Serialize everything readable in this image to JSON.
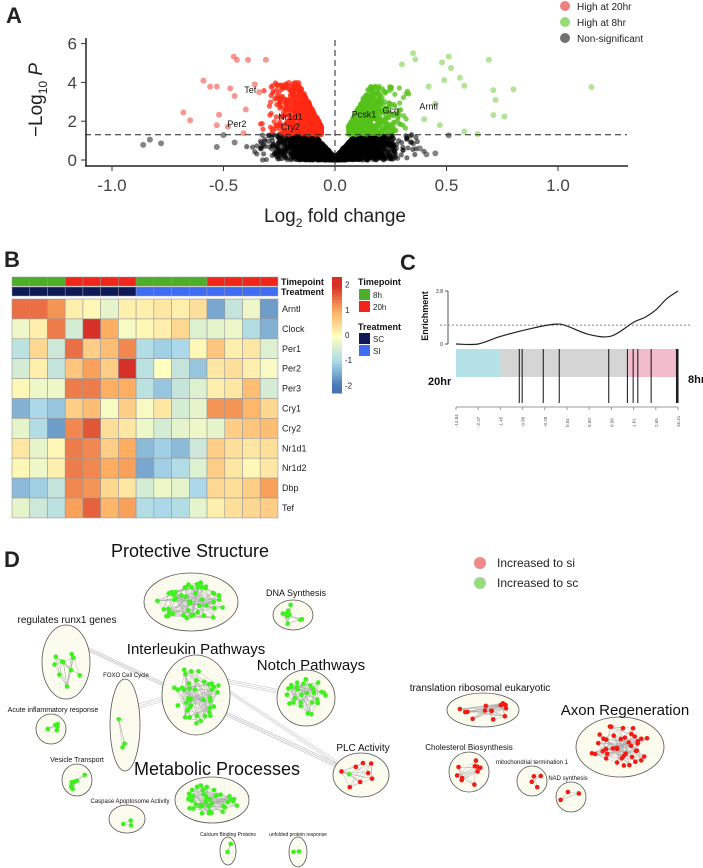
{
  "panels": {
    "a": "A",
    "b": "B",
    "c": "C",
    "d": "D"
  },
  "chart_data": [
    {
      "type": "scatter",
      "panel": "A",
      "title": "",
      "xlabel_main": "Log",
      "xlabel_sub": "2",
      "xlabel_rest": " fold change",
      "ylabel_main": "−Log",
      "ylabel_sub": "10",
      "ylabel_rest": " P",
      "xlim": [
        -1.15,
        1.3
      ],
      "ylim": [
        0,
        6.2
      ],
      "xticks": [
        "-1.0",
        "-0.5",
        "0.0",
        "0.5",
        "1.0"
      ],
      "xtick_values": [
        -1.0,
        -0.5,
        0.0,
        0.5,
        1.0
      ],
      "yticks": [
        "0",
        "2",
        "4",
        "6"
      ],
      "ytick_values": [
        0,
        2,
        4,
        6
      ],
      "significance_threshold": 1.3,
      "fc_threshold": 0.0,
      "legend": [
        {
          "label": "High at 20hr",
          "color": "#F08080"
        },
        {
          "label": "High at 8hr",
          "color": "#98DC78"
        },
        {
          "label": "Non-significant",
          "color": "#707070"
        }
      ],
      "legend_position": "top-right",
      "colors": {
        "high20": "#FF2A14",
        "high8": "#55C21A",
        "ns": "#000000"
      },
      "outliers": {
        "high20": [
          [
            -0.454,
            5.33
          ],
          [
            -0.44,
            5.16
          ],
          [
            -0.39,
            5.16
          ],
          [
            -0.31,
            5.17
          ],
          [
            -0.59,
            4.09
          ],
          [
            -0.56,
            3.78
          ],
          [
            -0.53,
            3.79
          ],
          [
            -0.47,
            3.69
          ],
          [
            -0.68,
            2.45
          ],
          [
            -0.65,
            2.05
          ],
          [
            -0.52,
            2.33
          ],
          [
            -0.53,
            1.79
          ],
          [
            -0.48,
            1.72
          ],
          [
            -0.41,
            1.38
          ],
          [
            -0.45,
            3.3
          ],
          [
            -0.4,
            2.6
          ],
          [
            -0.36,
            3.9
          ],
          [
            -0.34,
            3.5
          ]
        ],
        "high8": [
          [
            0.69,
            5.17
          ],
          [
            1.15,
            3.76
          ],
          [
            0.71,
            3.6
          ],
          [
            0.8,
            3.64
          ],
          [
            0.72,
            3.1
          ],
          [
            0.71,
            2.31
          ],
          [
            0.76,
            2.24
          ],
          [
            0.51,
            5.33
          ],
          [
            0.48,
            5.03
          ],
          [
            0.52,
            4.74
          ],
          [
            0.56,
            4.24
          ],
          [
            0.49,
            4.12
          ],
          [
            0.58,
            3.83
          ],
          [
            0.58,
            1.47
          ],
          [
            0.64,
            1.34
          ],
          [
            0.35,
            5.5
          ],
          [
            0.36,
            5.19
          ],
          [
            0.3,
            4.93
          ],
          [
            0.42,
            3.79
          ],
          [
            0.45,
            2.9
          ],
          [
            0.4,
            2.1
          ],
          [
            0.47,
            1.8
          ]
        ],
        "ns": [
          [
            -0.86,
            0.78
          ],
          [
            -0.83,
            1.05
          ],
          [
            -0.78,
            0.86
          ],
          [
            -0.5,
            1.28
          ],
          [
            -0.53,
            0.67
          ],
          [
            0.41,
            0.29
          ],
          [
            0.45,
            0.34
          ],
          [
            0.51,
            1.27
          ],
          [
            -0.45,
            0.9
          ],
          [
            0.38,
            0.6
          ]
        ]
      },
      "dense_cloud": {
        "ns_count": 2600,
        "high20_count": 700,
        "high8_count": 650
      },
      "gene_labels": [
        {
          "gene": "Tef",
          "x": -0.38,
          "y": 3.45
        },
        {
          "gene": "Nr1d1",
          "x": -0.2,
          "y": 2.05
        },
        {
          "gene": "Cry2",
          "x": -0.2,
          "y": 1.55
        },
        {
          "gene": "Per2",
          "x": -0.44,
          "y": 1.7
        },
        {
          "gene": "Pcsk1",
          "x": 0.13,
          "y": 2.2
        },
        {
          "gene": "Gcg",
          "x": 0.25,
          "y": 2.4
        },
        {
          "gene": "Arntl",
          "x": 0.42,
          "y": 2.6
        }
      ]
    },
    {
      "type": "heatmap",
      "panel": "B",
      "rows": [
        "Arntl",
        "Clock",
        "Per1",
        "Per2",
        "Per3",
        "Cry1",
        "Cry2",
        "Nr1d1",
        "Nr1d2",
        "Dbp",
        "Tef"
      ],
      "timepoint": [
        "8h",
        "8h",
        "8h",
        "20h",
        "20h",
        "20h",
        "20h",
        "8h",
        "8h",
        "8h",
        "8h",
        "20h",
        "20h",
        "20h",
        "20h"
      ],
      "treatment": [
        "SC",
        "SC",
        "SC",
        "SC",
        "SC",
        "SC",
        "SC",
        "SI",
        "SI",
        "SI",
        "SI",
        "SI",
        "SI",
        "SI",
        "SI"
      ],
      "values": [
        [
          1.5,
          1.5,
          1.2,
          0.2,
          0.1,
          -0.3,
          0.2,
          0.2,
          0.3,
          0.2,
          0.4,
          -1.5,
          -0.7,
          -0.2,
          -1.6
        ],
        [
          -0.2,
          0.2,
          1.4,
          -0.5,
          2.2,
          1.0,
          -0.1,
          0.1,
          0.2,
          0.5,
          -0.4,
          -0.3,
          -0.2,
          -0.9,
          -1.4
        ],
        [
          -0.8,
          0.5,
          -0.6,
          1.5,
          0.6,
          0.8,
          1.3,
          -0.9,
          -1.1,
          -1.0,
          0.1,
          0.7,
          0.2,
          0.3,
          -0.4
        ],
        [
          -0.5,
          0.2,
          -0.7,
          0.7,
          1.1,
          0.6,
          2.3,
          -0.8,
          0.0,
          -0.7,
          -1.2,
          0.3,
          0.4,
          0.2,
          -0.1
        ],
        [
          0.1,
          -0.2,
          -0.2,
          1.4,
          1.4,
          1.0,
          1.0,
          -0.8,
          -1.2,
          -0.7,
          -0.4,
          0.2,
          0.3,
          0.8,
          -0.5
        ],
        [
          -1.4,
          -1.0,
          -1.2,
          0.6,
          0.8,
          -0.1,
          0.6,
          -0.1,
          0.3,
          -0.5,
          -0.3,
          1.2,
          1.2,
          0.9,
          0.5
        ],
        [
          -0.3,
          -0.9,
          -1.6,
          1.3,
          1.7,
          0.4,
          0.3,
          -0.2,
          -0.5,
          -0.3,
          -0.2,
          -0.3,
          0.6,
          0.7,
          0.8
        ],
        [
          0.3,
          -0.3,
          0.1,
          1.4,
          1.3,
          0.6,
          1.0,
          -1.3,
          -1.1,
          -1.3,
          -0.6,
          0.6,
          0.4,
          0.3,
          0.4
        ],
        [
          0.1,
          -0.2,
          0.2,
          1.4,
          1.3,
          1.0,
          1.1,
          -1.5,
          -1.1,
          -0.9,
          -0.4,
          0.6,
          0.3,
          0.1,
          0.3
        ],
        [
          -1.3,
          -1.1,
          -0.7,
          1.3,
          1.2,
          0.5,
          0.3,
          -0.5,
          -0.2,
          -0.3,
          -1.0,
          0.5,
          0.4,
          0.6,
          1.1
        ],
        [
          -0.3,
          -0.6,
          -0.8,
          1.1,
          1.6,
          0.9,
          1.1,
          -0.9,
          -1.0,
          -0.9,
          -0.3,
          0.2,
          0.4,
          0.5,
          0.6
        ]
      ],
      "annotation_labels": {
        "timepoint": "Timepoint",
        "treatment": "Treatment"
      },
      "scale_ticks": [
        "2",
        "1",
        "0",
        "-1",
        "-2"
      ],
      "scale_values": [
        2,
        1,
        0,
        -1,
        -2
      ],
      "scale_range": [
        -2.3,
        2.3
      ],
      "scale_colors": [
        "#4575B4",
        "#ABD9E9",
        "#FFFFBF",
        "#FDAE61",
        "#D73027"
      ],
      "legend": {
        "timepoint_title": "Timepoint",
        "timepoint": [
          {
            "label": "8h",
            "color": "#4DAF27"
          },
          {
            "label": "20h",
            "color": "#F2251A"
          }
        ],
        "treatment_title": "Treatment",
        "treatment": [
          {
            "label": "SC",
            "color": "#0E1A57"
          },
          {
            "label": "SI",
            "color": "#3F6CF5"
          }
        ]
      }
    },
    {
      "type": "line",
      "panel": "C",
      "ylabel": "Enrichment",
      "yticks": [
        "0",
        "2.8"
      ],
      "ylim": [
        0,
        2.8
      ],
      "threshold": 1.0,
      "curve_x": [
        0,
        0.1,
        0.2,
        0.35,
        0.45,
        0.5,
        0.6,
        0.7,
        0.8,
        0.85,
        0.9,
        0.95,
        1.0
      ],
      "curve_y": [
        0,
        0,
        0.4,
        0.85,
        1.05,
        0.95,
        0.5,
        0.42,
        1.15,
        1.4,
        1.8,
        2.4,
        2.8
      ],
      "hits": [
        0.285,
        0.298,
        0.393,
        0.465,
        0.688,
        0.772,
        0.798,
        0.819,
        0.879,
        0.993,
        0.998,
        1.0
      ],
      "regions": [
        {
          "from": 0,
          "to": 0.2,
          "color": "#B3E1E6"
        },
        {
          "from": 0.2,
          "to": 0.77,
          "color": "#D5D5D5"
        },
        {
          "from": 0.77,
          "to": 1,
          "color": "#F2BCCC"
        }
      ],
      "xticks": [
        "-14.84",
        "-2.37",
        "-1.45",
        "-0.80",
        "-0.28",
        "0.04",
        "0.50",
        "0.98",
        "1.61",
        "2.65",
        "16.41"
      ],
      "left_label": "20hr",
      "right_label": "8hr"
    }
  ],
  "network": {
    "legend": [
      {
        "label": "Increased to si",
        "color": "#F08A8A"
      },
      {
        "label": "Increased to sc",
        "color": "#9ADB82"
      }
    ],
    "clusters": [
      {
        "name": "Protective Structure",
        "group": "sc",
        "nodes": 48
      },
      {
        "name": "DNA Synthesis",
        "group": "sc",
        "nodes": 10
      },
      {
        "name": "regulates runx1 genes",
        "group": "sc",
        "nodes": 10
      },
      {
        "name": "Interleukin Pathways",
        "group": "sc",
        "nodes": 40
      },
      {
        "name": "Notch Pathways",
        "group": "sc",
        "nodes": 28
      },
      {
        "name": "FOXO Cell Cycle",
        "group": "sc",
        "nodes": 3
      },
      {
        "name": "Acute inflammatory response",
        "group": "sc",
        "nodes": 5
      },
      {
        "name": "Vesicle Transport",
        "group": "sc",
        "nodes": 7
      },
      {
        "name": "Metabolic Processes",
        "group": "sc",
        "nodes": 42
      },
      {
        "name": "Caspase Apoptosome Activity",
        "group": "sc",
        "nodes": 3
      },
      {
        "name": "Calcium Binding Proteins",
        "group": "sc",
        "nodes": 2
      },
      {
        "name": "unfolded protein response",
        "group": "sc",
        "nodes": 2
      },
      {
        "name": "PLC Activity",
        "group": "mixed",
        "nodes": 9
      },
      {
        "name": "translation ribosomal eukaryotic",
        "group": "si",
        "nodes": 16
      },
      {
        "name": "Axon Regeneration",
        "group": "si",
        "nodes": 40
      },
      {
        "name": "Cholesterol Biosynthesis",
        "group": "si",
        "nodes": 10
      },
      {
        "name": "mitochondrial termination 1",
        "group": "si",
        "nodes": 4
      },
      {
        "name": "NAD synthesis",
        "group": "si",
        "nodes": 3
      }
    ],
    "node_colors": {
      "sc": "#3CF21C",
      "si": "#F21A14"
    }
  }
}
